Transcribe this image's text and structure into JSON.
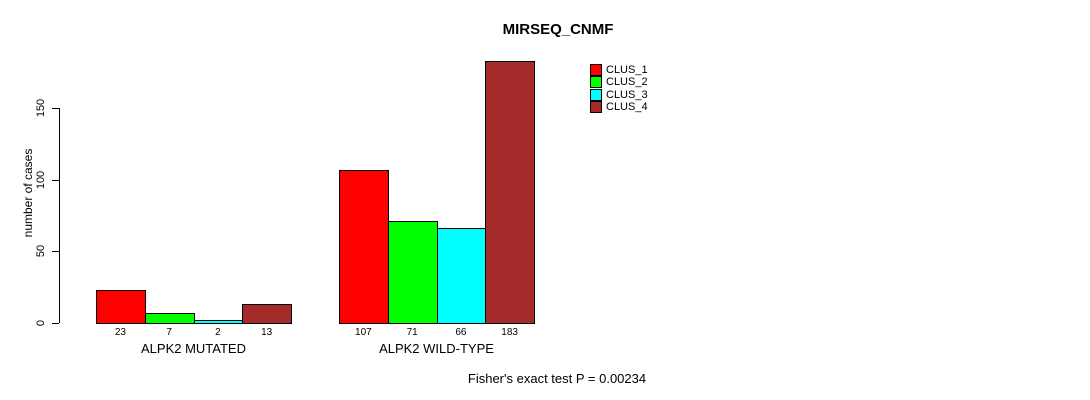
{
  "chart_data": {
    "type": "bar",
    "title": "MIRSEQ_CNMF",
    "ylabel": "number of cases",
    "xlabel": "",
    "categories": [
      "ALPK2 MUTATED",
      "ALPK2 WILD-TYPE"
    ],
    "series": [
      {
        "name": "CLUS_1",
        "color": "#ff0000",
        "values": [
          23,
          107
        ]
      },
      {
        "name": "CLUS_2",
        "color": "#00ff00",
        "values": [
          7,
          71
        ]
      },
      {
        "name": "CLUS_3",
        "color": "#00ffff",
        "values": [
          2,
          66
        ]
      },
      {
        "name": "CLUS_4",
        "color": "#a52a2a",
        "values": [
          13,
          183
        ]
      }
    ],
    "y_ticks": [
      0,
      50,
      100,
      150
    ],
    "ylim": [
      0,
      183
    ],
    "grid": false,
    "bar_value_labels_shown": true,
    "legend_position": "inside-top-right",
    "annotation": "Fisher's exact test P = 0.00234"
  }
}
